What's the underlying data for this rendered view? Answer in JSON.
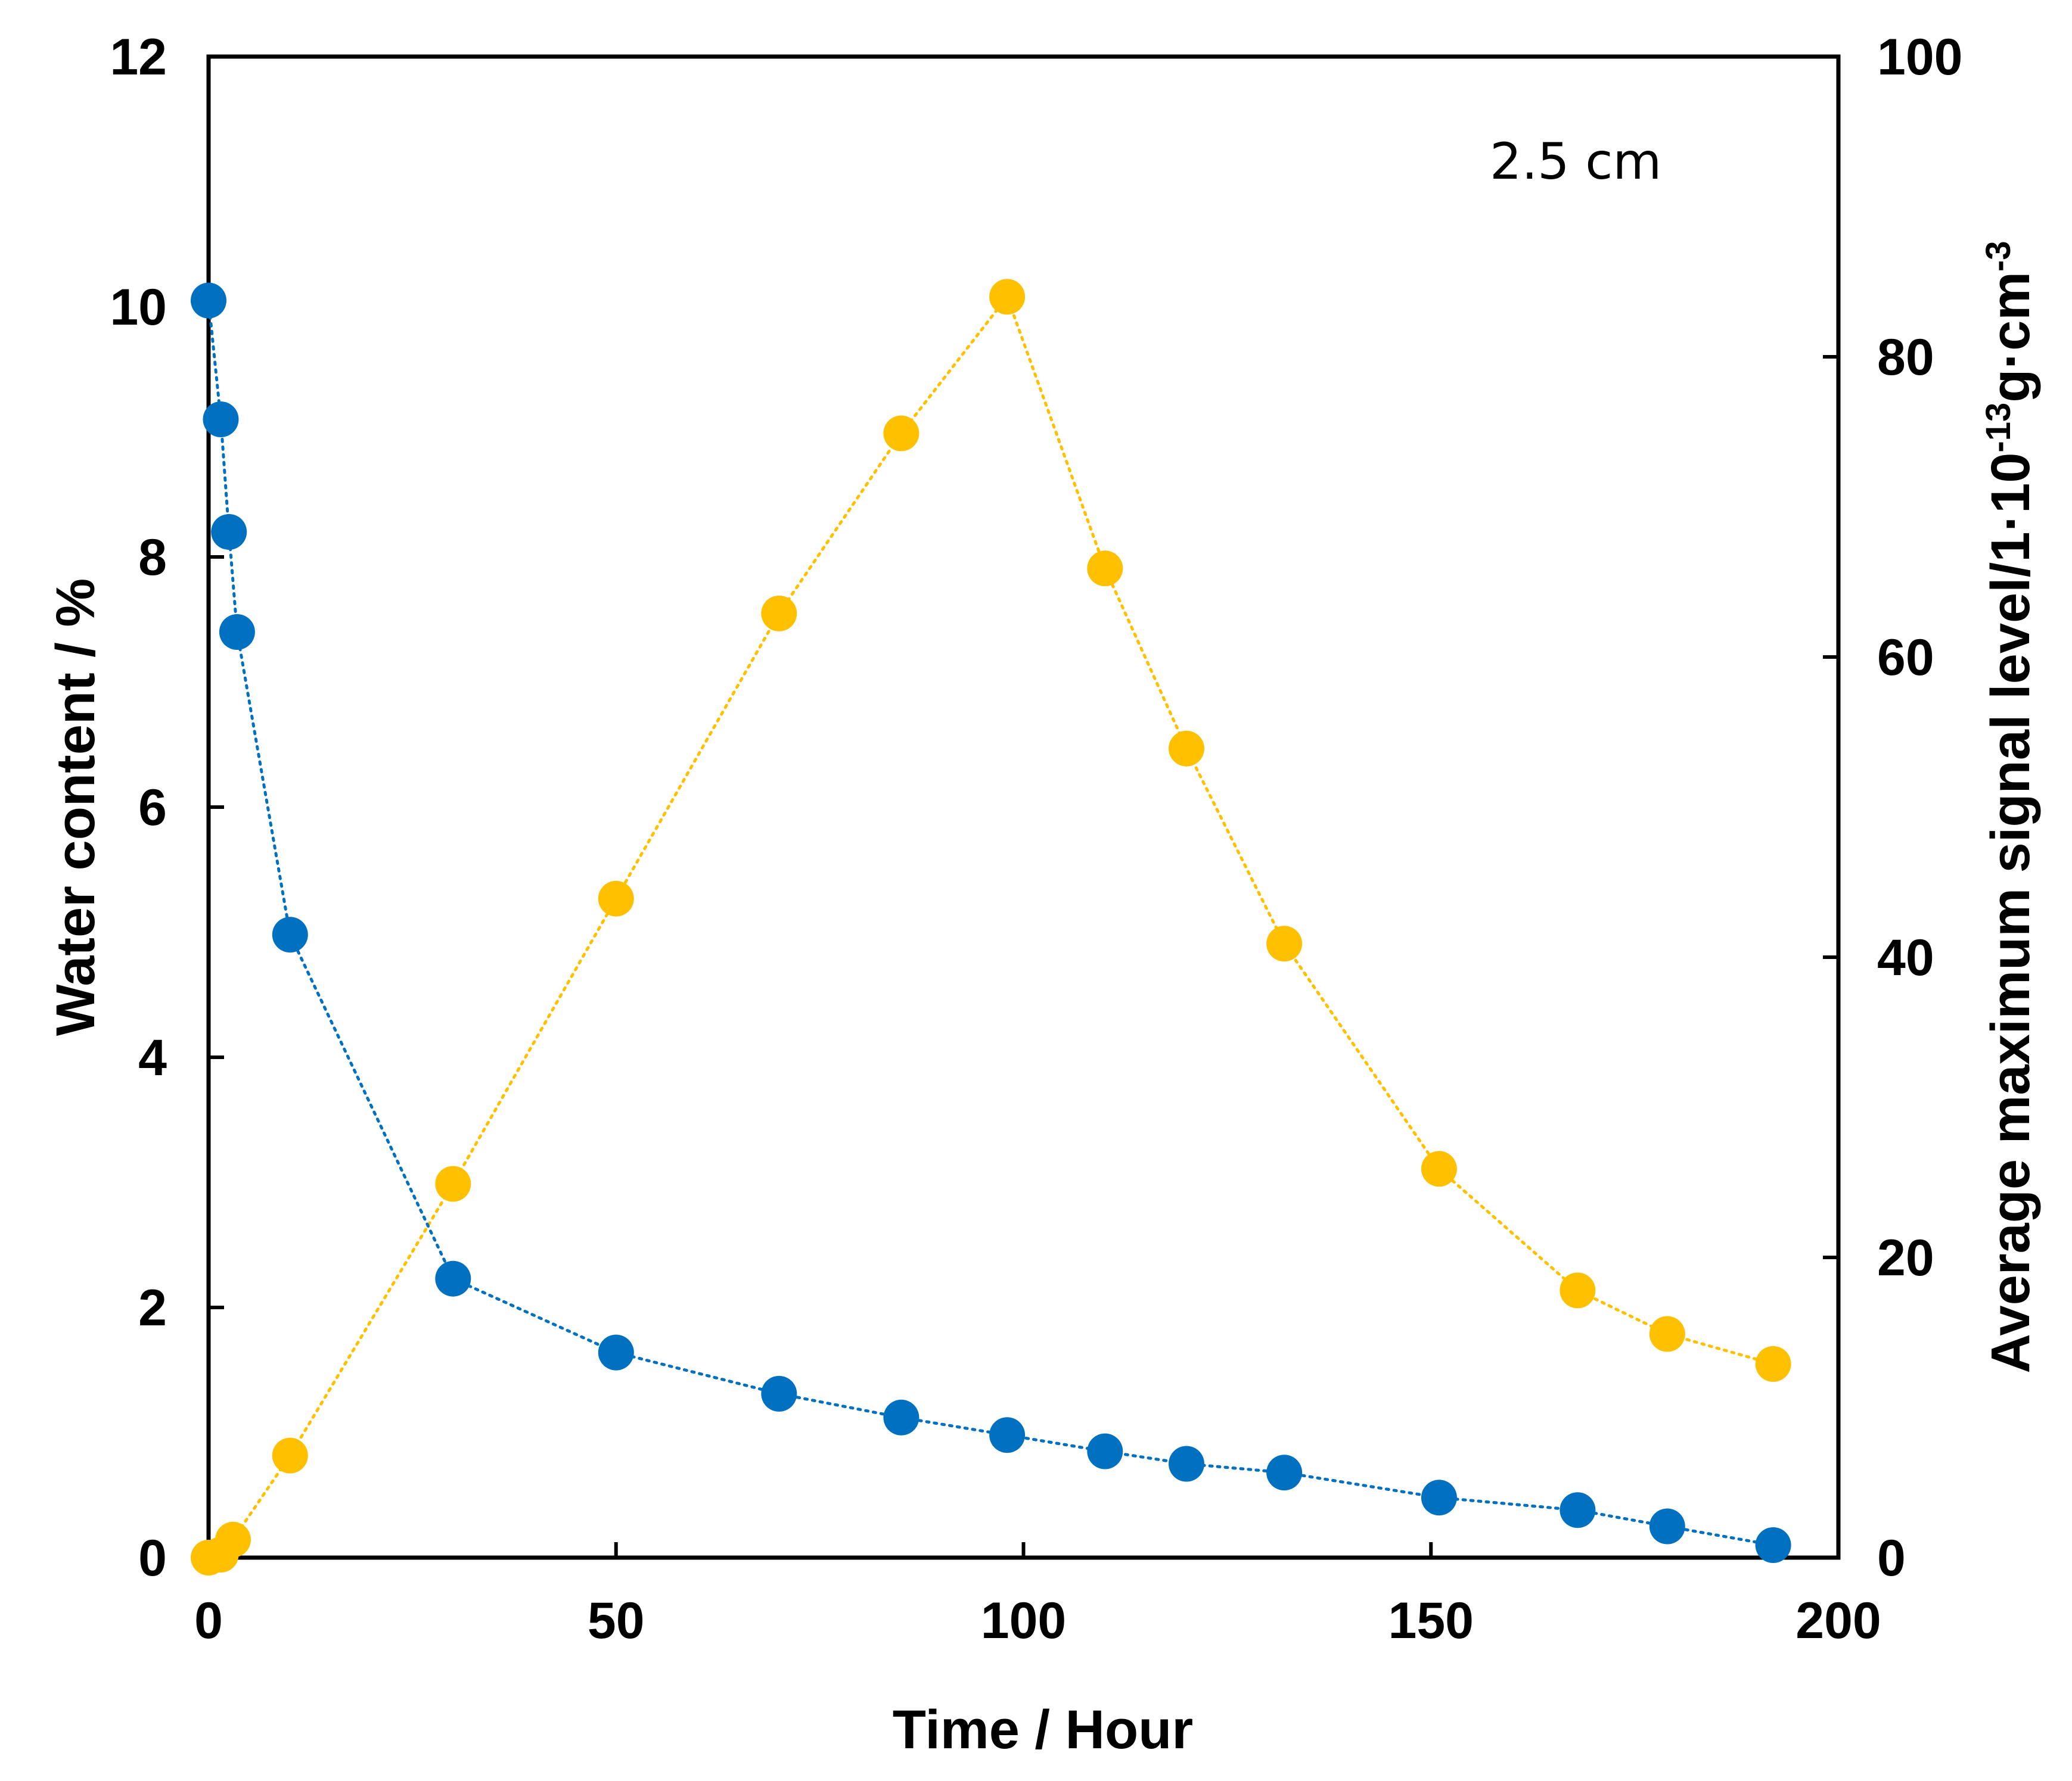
{
  "chart_data": {
    "type": "scatter",
    "annotation": "2.5 cm",
    "xlabel": "Time / Hour",
    "ylabel_left": "Water content / %",
    "ylabel_right": {
      "main": "Average maximum signal level/1·10",
      "exp1": "-13",
      "mid": "g·cm",
      "exp2": "-3"
    },
    "xlim": [
      0,
      200
    ],
    "ylim_left": [
      0,
      12
    ],
    "ylim_right": [
      0,
      100
    ],
    "xticks": [
      "0",
      "50",
      "100",
      "150",
      "200"
    ],
    "yticks_left": [
      "0",
      "2",
      "4",
      "6",
      "8",
      "10",
      "12"
    ],
    "yticks_right": [
      "0",
      "20",
      "40",
      "60",
      "80",
      "100"
    ],
    "grid": false,
    "series": [
      {
        "name": "Water content",
        "axis": "left",
        "color": "#0070C0",
        "line": "dotted",
        "x": [
          0,
          1.5,
          2.5,
          3.5,
          10,
          30,
          50,
          70,
          85,
          98,
          110,
          120,
          132,
          151,
          168,
          179,
          192
        ],
        "y": [
          10.05,
          9.1,
          8.2,
          7.4,
          4.98,
          2.23,
          1.64,
          1.31,
          1.12,
          0.98,
          0.85,
          0.75,
          0.68,
          0.48,
          0.38,
          0.25,
          0.1
        ]
      },
      {
        "name": "Average maximum signal level",
        "axis": "right",
        "color": "#FFC000",
        "line": "dotted",
        "x": [
          0,
          1.5,
          3,
          10,
          30,
          50,
          70,
          85,
          98,
          110,
          120,
          132,
          151,
          168,
          179,
          192
        ],
        "y": [
          0,
          0.2,
          1.2,
          6.8,
          24.9,
          43.9,
          62.9,
          74.9,
          84,
          65.9,
          53.9,
          40.9,
          25.9,
          17.8,
          14.9,
          12.9
        ]
      }
    ]
  }
}
